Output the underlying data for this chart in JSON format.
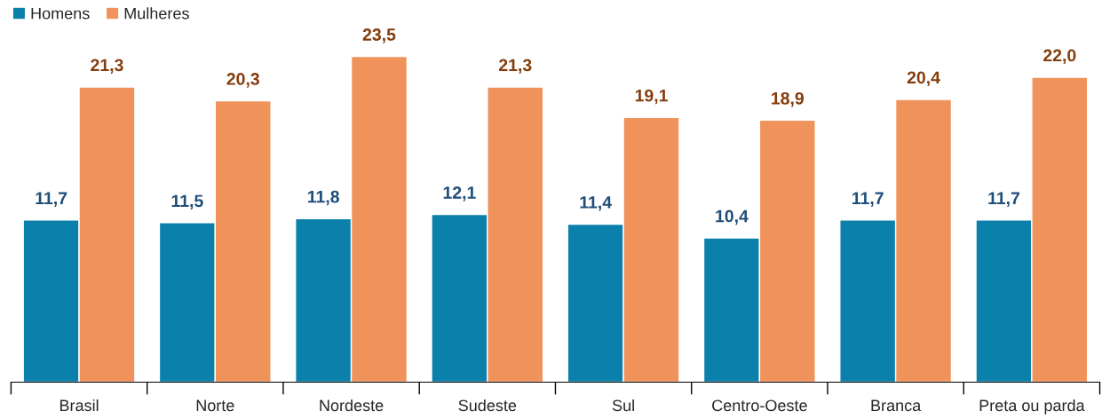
{
  "chart_data": {
    "type": "bar",
    "categories": [
      "Brasil",
      "Norte",
      "Nordeste",
      "Sudeste",
      "Sul",
      "Centro-Oeste",
      "Branca",
      "Preta ou parda"
    ],
    "series": [
      {
        "name": "Homens",
        "color": "#0a80aa",
        "values": [
          11.7,
          11.5,
          11.8,
          12.1,
          11.4,
          10.4,
          11.7,
          11.7
        ],
        "value_labels": [
          "11,7",
          "11,5",
          "11,8",
          "12,1",
          "11,4",
          "10,4",
          "11,7",
          "11,7"
        ]
      },
      {
        "name": "Mulheres",
        "color": "#f0935b",
        "values": [
          21.3,
          20.3,
          23.5,
          21.3,
          19.1,
          18.9,
          20.4,
          22.0
        ],
        "value_labels": [
          "21,3",
          "20,3",
          "23,5",
          "21,3",
          "19,1",
          "18,9",
          "20,4",
          "22,0"
        ]
      }
    ],
    "legend": "top left",
    "grid": false
  }
}
